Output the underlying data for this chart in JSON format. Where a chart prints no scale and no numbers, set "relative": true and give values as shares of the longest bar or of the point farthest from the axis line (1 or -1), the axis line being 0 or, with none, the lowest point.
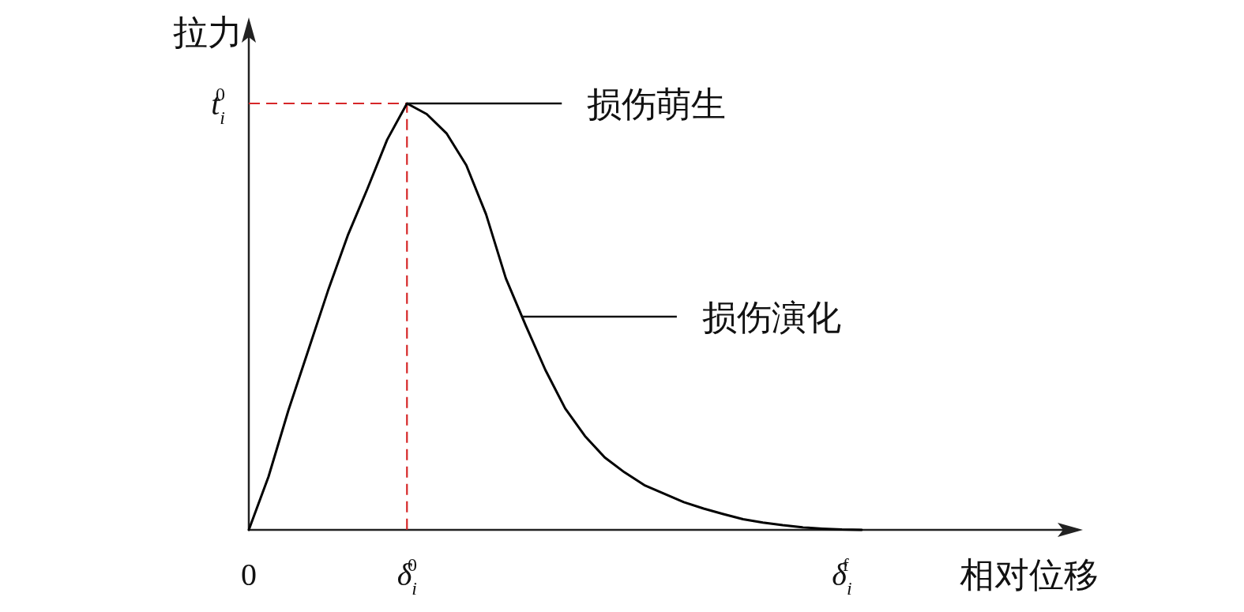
{
  "chart_data": {
    "type": "line",
    "relative": true,
    "xlabel": "相对位移",
    "ylabel": "拉力",
    "categories": [
      "0",
      null,
      null,
      null,
      null,
      null,
      null,
      null,
      "δ$_{i}$$^{0}$",
      null,
      null,
      null,
      null,
      null,
      null,
      null,
      null,
      null,
      null,
      null,
      null,
      null,
      null,
      null,
      null,
      null,
      null,
      null,
      null,
      null,
      "δ$_{i}$$^{f}$",
      null
    ],
    "series": [
      {
        "color": "#000000",
        "values": [
          0,
          0.125,
          0.28,
          0.42,
          0.56,
          0.69,
          0.8,
          0.915,
          1,
          0.975,
          0.93,
          0.855,
          0.74,
          0.59,
          0.48,
          0.375,
          0.285,
          0.22,
          0.17,
          0.135,
          0.105,
          0.085,
          0.065,
          0.05,
          0.037,
          0.025,
          0.017,
          0.011,
          0.006,
          0.003,
          0.001,
          0
        ]
      }
    ],
    "ref_lines": [
      {
        "axis": "y",
        "value": 1,
        "label": "t$_{i}$$^{0}$",
        "color": "#d62728",
        "line_style": "dashed"
      }
    ],
    "annotations": [
      "损伤萌生",
      "损伤演化"
    ]
  }
}
